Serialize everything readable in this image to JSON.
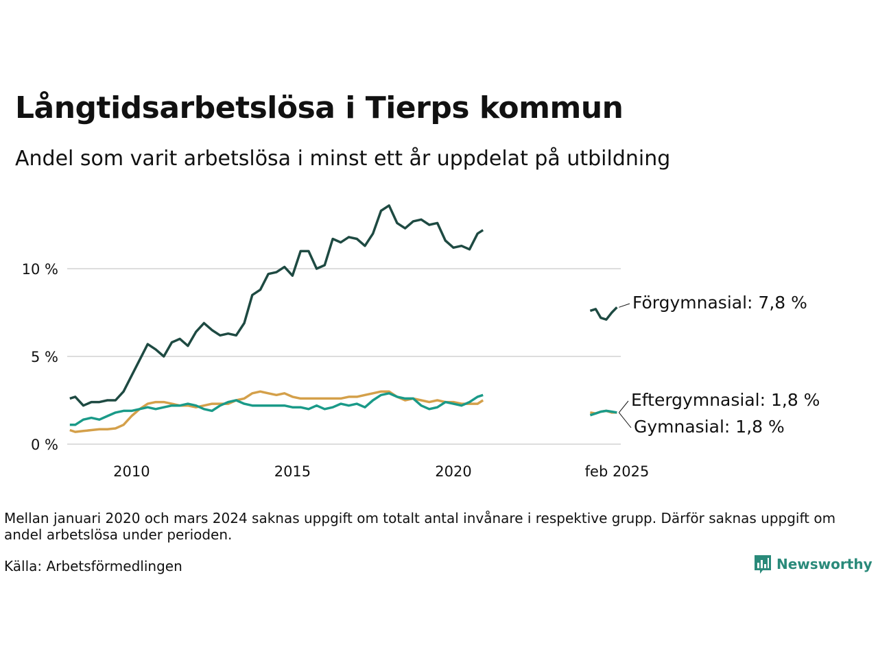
{
  "title": "Långtidsarbetslösa i Tierps kommun",
  "subtitle": "Andel som varit arbetslösa i minst ett år uppdelat på utbildning",
  "note": "Mellan januari 2020 och mars 2024 saknas uppgift om totalt antal invånare i respektive grupp. Därför saknas uppgift om andel arbetslösa under perioden.",
  "source": "Källa: Arbetsförmedlingen",
  "brand": "Newsworthy",
  "chart_data": {
    "type": "line",
    "title": "",
    "xlabel": "",
    "ylabel": "",
    "ylim": [
      0,
      13
    ],
    "y_ticks": [
      0,
      5,
      10
    ],
    "y_tick_labels": [
      "0 %",
      "5 %",
      "10 %"
    ],
    "x_range": [
      2008.0,
      2025.2
    ],
    "x_ticks": [
      2010,
      2015,
      2020,
      2025.083
    ],
    "x_tick_labels": [
      "2010",
      "2015",
      "2020",
      "feb 2025"
    ],
    "grid": "horizontal",
    "series": [
      {
        "name": "Förgymnasial",
        "end_label": "Förgymnasial: 7,8 %",
        "color": "#1e4a42",
        "segments": [
          [
            [
              2008.08,
              2.6
            ],
            [
              2008.25,
              2.7
            ],
            [
              2008.5,
              2.2
            ],
            [
              2008.75,
              2.4
            ],
            [
              2009.0,
              2.4
            ],
            [
              2009.25,
              2.5
            ],
            [
              2009.5,
              2.5
            ],
            [
              2009.75,
              3.0
            ],
            [
              2010.0,
              3.9
            ],
            [
              2010.25,
              4.8
            ],
            [
              2010.5,
              5.7
            ],
            [
              2010.75,
              5.4
            ],
            [
              2011.0,
              5.0
            ],
            [
              2011.25,
              5.8
            ],
            [
              2011.5,
              6.0
            ],
            [
              2011.75,
              5.6
            ],
            [
              2012.0,
              6.4
            ],
            [
              2012.25,
              6.9
            ],
            [
              2012.5,
              6.5
            ],
            [
              2012.75,
              6.2
            ],
            [
              2013.0,
              6.3
            ],
            [
              2013.25,
              6.2
            ],
            [
              2013.5,
              6.9
            ],
            [
              2013.75,
              8.5
            ],
            [
              2014.0,
              8.8
            ],
            [
              2014.25,
              9.7
            ],
            [
              2014.5,
              9.8
            ],
            [
              2014.75,
              10.1
            ],
            [
              2015.0,
              9.6
            ],
            [
              2015.25,
              11.0
            ],
            [
              2015.5,
              11.0
            ],
            [
              2015.75,
              10.0
            ],
            [
              2016.0,
              10.2
            ],
            [
              2016.25,
              11.7
            ],
            [
              2016.5,
              11.5
            ],
            [
              2016.75,
              11.8
            ],
            [
              2017.0,
              11.7
            ],
            [
              2017.25,
              11.3
            ],
            [
              2017.5,
              12.0
            ],
            [
              2017.75,
              13.3
            ],
            [
              2018.0,
              13.6
            ],
            [
              2018.25,
              12.6
            ],
            [
              2018.5,
              12.3
            ],
            [
              2018.75,
              12.7
            ],
            [
              2019.0,
              12.8
            ],
            [
              2019.25,
              12.5
            ],
            [
              2019.5,
              12.6
            ],
            [
              2019.75,
              11.6
            ],
            [
              2020.0,
              11.2
            ],
            [
              2020.25,
              11.3
            ],
            [
              2020.5,
              11.1
            ],
            [
              2020.75,
              12.0
            ],
            [
              2020.92,
              12.2
            ]
          ],
          [
            [
              2024.25,
              7.6
            ],
            [
              2024.42,
              7.7
            ],
            [
              2024.58,
              7.2
            ],
            [
              2024.75,
              7.1
            ],
            [
              2024.92,
              7.5
            ],
            [
              2025.08,
              7.8
            ]
          ]
        ]
      },
      {
        "name": "Eftergymnasial",
        "end_label": "Eftergymnasial: 1,8 %",
        "color": "#1a9a88",
        "segments": [
          [
            [
              2008.08,
              1.1
            ],
            [
              2008.25,
              1.1
            ],
            [
              2008.5,
              1.4
            ],
            [
              2008.75,
              1.5
            ],
            [
              2009.0,
              1.4
            ],
            [
              2009.25,
              1.6
            ],
            [
              2009.5,
              1.8
            ],
            [
              2009.75,
              1.9
            ],
            [
              2010.0,
              1.9
            ],
            [
              2010.25,
              2.0
            ],
            [
              2010.5,
              2.1
            ],
            [
              2010.75,
              2.0
            ],
            [
              2011.0,
              2.1
            ],
            [
              2011.25,
              2.2
            ],
            [
              2011.5,
              2.2
            ],
            [
              2011.75,
              2.3
            ],
            [
              2012.0,
              2.2
            ],
            [
              2012.25,
              2.0
            ],
            [
              2012.5,
              1.9
            ],
            [
              2012.75,
              2.2
            ],
            [
              2013.0,
              2.4
            ],
            [
              2013.25,
              2.5
            ],
            [
              2013.5,
              2.3
            ],
            [
              2013.75,
              2.2
            ],
            [
              2014.0,
              2.2
            ],
            [
              2014.25,
              2.2
            ],
            [
              2014.5,
              2.2
            ],
            [
              2014.75,
              2.2
            ],
            [
              2015.0,
              2.1
            ],
            [
              2015.25,
              2.1
            ],
            [
              2015.5,
              2.0
            ],
            [
              2015.75,
              2.2
            ],
            [
              2016.0,
              2.0
            ],
            [
              2016.25,
              2.1
            ],
            [
              2016.5,
              2.3
            ],
            [
              2016.75,
              2.2
            ],
            [
              2017.0,
              2.3
            ],
            [
              2017.25,
              2.1
            ],
            [
              2017.5,
              2.5
            ],
            [
              2017.75,
              2.8
            ],
            [
              2018.0,
              2.9
            ],
            [
              2018.25,
              2.7
            ],
            [
              2018.5,
              2.6
            ],
            [
              2018.75,
              2.6
            ],
            [
              2019.0,
              2.2
            ],
            [
              2019.25,
              2.0
            ],
            [
              2019.5,
              2.1
            ],
            [
              2019.75,
              2.4
            ],
            [
              2020.0,
              2.3
            ],
            [
              2020.25,
              2.2
            ],
            [
              2020.5,
              2.4
            ],
            [
              2020.75,
              2.7
            ],
            [
              2020.92,
              2.8
            ]
          ],
          [
            [
              2024.25,
              1.65
            ],
            [
              2024.42,
              1.75
            ],
            [
              2024.58,
              1.85
            ],
            [
              2024.75,
              1.9
            ],
            [
              2024.92,
              1.85
            ],
            [
              2025.08,
              1.8
            ]
          ]
        ]
      },
      {
        "name": "Gymnasial",
        "end_label": "Gymnasial: 1,8 %",
        "color": "#d4a04a",
        "segments": [
          [
            [
              2008.08,
              0.8
            ],
            [
              2008.25,
              0.7
            ],
            [
              2008.5,
              0.75
            ],
            [
              2008.75,
              0.8
            ],
            [
              2009.0,
              0.85
            ],
            [
              2009.25,
              0.85
            ],
            [
              2009.5,
              0.9
            ],
            [
              2009.75,
              1.1
            ],
            [
              2010.0,
              1.6
            ],
            [
              2010.25,
              2.0
            ],
            [
              2010.5,
              2.3
            ],
            [
              2010.75,
              2.4
            ],
            [
              2011.0,
              2.4
            ],
            [
              2011.25,
              2.3
            ],
            [
              2011.5,
              2.2
            ],
            [
              2011.75,
              2.2
            ],
            [
              2012.0,
              2.1
            ],
            [
              2012.25,
              2.2
            ],
            [
              2012.5,
              2.3
            ],
            [
              2012.75,
              2.3
            ],
            [
              2013.0,
              2.3
            ],
            [
              2013.25,
              2.5
            ],
            [
              2013.5,
              2.6
            ],
            [
              2013.75,
              2.9
            ],
            [
              2014.0,
              3.0
            ],
            [
              2014.25,
              2.9
            ],
            [
              2014.5,
              2.8
            ],
            [
              2014.75,
              2.9
            ],
            [
              2015.0,
              2.7
            ],
            [
              2015.25,
              2.6
            ],
            [
              2015.5,
              2.6
            ],
            [
              2015.75,
              2.6
            ],
            [
              2016.0,
              2.6
            ],
            [
              2016.25,
              2.6
            ],
            [
              2016.5,
              2.6
            ],
            [
              2016.75,
              2.7
            ],
            [
              2017.0,
              2.7
            ],
            [
              2017.25,
              2.8
            ],
            [
              2017.5,
              2.9
            ],
            [
              2017.75,
              3.0
            ],
            [
              2018.0,
              3.0
            ],
            [
              2018.25,
              2.7
            ],
            [
              2018.5,
              2.5
            ],
            [
              2018.75,
              2.6
            ],
            [
              2019.0,
              2.5
            ],
            [
              2019.25,
              2.4
            ],
            [
              2019.5,
              2.5
            ],
            [
              2019.75,
              2.4
            ],
            [
              2020.0,
              2.4
            ],
            [
              2020.25,
              2.3
            ],
            [
              2020.5,
              2.3
            ],
            [
              2020.75,
              2.3
            ],
            [
              2020.92,
              2.5
            ]
          ],
          [
            [
              2024.25,
              1.8
            ],
            [
              2024.42,
              1.75
            ],
            [
              2024.58,
              1.85
            ],
            [
              2024.75,
              1.9
            ],
            [
              2024.92,
              1.8
            ],
            [
              2025.08,
              1.8
            ]
          ]
        ]
      }
    ]
  }
}
